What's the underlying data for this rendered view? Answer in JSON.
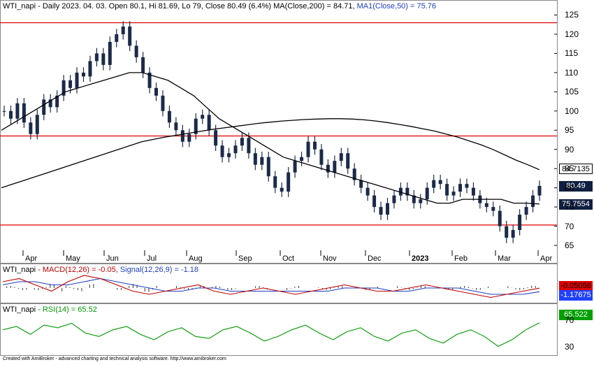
{
  "header": {
    "main": {
      "ticker": "WTI_napi",
      "info": " - Daily 2023. 04. 03. Open 80.1, Hi 81.69, Lo 79, Close 80.49 (6.4%) MA(Close,200) = 84.71, ",
      "ma50": "MA1(Close,50) = 75.76"
    },
    "macd": {
      "ticker": "WTI_napi",
      "macd_label": " - MACD(12,26) = -0.05, ",
      "signal_label": "Signal(12,26,9) = -1.18"
    },
    "rsi": {
      "ticker": "WTI_napi",
      "rsi_label": " - RSI(14) = 65.52"
    }
  },
  "tags": {
    "ma200": "84.7135",
    "close": "80.49",
    "ma50": "75.7554",
    "macd": "-0.05056",
    "signal": "-1.17675",
    "rsi": "65.522"
  },
  "credit": "Created with AmiBroker - advanced charting and technical analysis software. http://www.amibroker.com",
  "colors": {
    "price": "#1c2a4a",
    "ma": "#000000",
    "hline": "#e00000",
    "macd": "#c00000",
    "signal": "#1f3fbf",
    "rsi": "#009900",
    "tag_dark": "#0f1f3f",
    "tag_macd": "#e00000",
    "tag_signal": "#2040ff",
    "tag_rsi": "#00a000"
  },
  "chart_data": [
    {
      "type": "line",
      "title": "WTI_napi - Daily",
      "x_labels": [
        "Apr",
        "May",
        "Jun",
        "Jul",
        "Aug",
        "Sep",
        "Oct",
        "Nov",
        "Dec",
        "2023",
        "Feb",
        "Mar",
        "Apr"
      ],
      "y_ticks": [
        65,
        70,
        75,
        80,
        85,
        90,
        95,
        100,
        105,
        110,
        115,
        120,
        125
      ],
      "ylim": [
        63,
        126
      ],
      "horizontal_lines": [
        123,
        93.5,
        70.3
      ],
      "series": [
        {
          "name": "Close",
          "values": [
            100,
            98,
            102,
            97,
            94,
            99,
            103,
            101,
            104,
            108,
            106,
            110,
            109,
            113,
            115,
            112,
            118,
            120,
            122,
            117,
            114,
            110,
            106,
            104,
            100,
            97,
            95,
            92,
            94,
            98,
            99,
            95,
            91,
            88,
            89,
            91,
            93,
            89,
            86,
            88,
            83,
            80,
            79,
            84,
            87,
            88,
            92,
            90,
            86,
            84,
            87,
            89,
            85,
            82,
            80,
            78,
            75,
            73,
            76,
            78,
            80,
            78,
            76,
            77,
            80,
            82,
            81,
            78,
            79,
            81,
            80,
            78,
            76,
            75,
            74,
            70,
            67,
            69,
            73,
            75,
            78,
            80.49
          ]
        },
        {
          "name": "MA(Close,200)",
          "values": [
            80,
            81,
            82,
            83,
            84,
            85,
            86,
            87,
            88,
            89,
            90,
            91,
            92,
            92.6,
            93.2,
            93.7,
            94.2,
            94.7,
            95.2,
            95.6,
            96,
            96.4,
            96.8,
            97.1,
            97.4,
            97.6,
            97.8,
            97.9,
            98,
            98,
            97.9,
            97.7,
            97.4,
            97,
            96.5,
            96,
            95.4,
            94.8,
            94,
            93.2,
            92.2,
            91.2,
            90,
            88.6,
            87.2,
            86,
            84.71
          ]
        },
        {
          "name": "MA1(Close,50)",
          "values": [
            95,
            97,
            99,
            101,
            103,
            105,
            106,
            107,
            108,
            109,
            110,
            110,
            109,
            108,
            106,
            104,
            101,
            98,
            96,
            94,
            92,
            90,
            88,
            87,
            86,
            85,
            84,
            83,
            82,
            81,
            80,
            79,
            78,
            77,
            76,
            76,
            77,
            77,
            77,
            77,
            76,
            76,
            75.76
          ]
        }
      ]
    },
    {
      "type": "line",
      "title": "WTI_napi - MACD(12,26)",
      "series": [
        {
          "name": "MACD(12,26)",
          "values": [
            2,
            3,
            1,
            -1,
            2,
            4,
            3,
            1,
            -1,
            -2,
            -1,
            0,
            1,
            -1,
            -2,
            -1,
            0,
            -1,
            -2,
            -1,
            0,
            1,
            0,
            -1,
            -1,
            0,
            1,
            0,
            -1,
            -2,
            -3,
            -2,
            -1,
            -0.05
          ]
        },
        {
          "name": "Signal(12,26,9)",
          "values": [
            1,
            2,
            2,
            1,
            1,
            2,
            3,
            2,
            1,
            0,
            -1,
            -1,
            0,
            0,
            -1,
            -1,
            -1,
            -1,
            -1,
            -1,
            -1,
            0,
            0,
            0,
            -1,
            -1,
            0,
            0,
            0,
            -1,
            -2,
            -2,
            -2,
            -1.18
          ]
        }
      ]
    },
    {
      "type": "line",
      "title": "WTI_napi - RSI(14)",
      "y_ticks": [
        30,
        70
      ],
      "series": [
        {
          "name": "RSI(14)",
          "values": [
            55,
            60,
            48,
            62,
            58,
            65,
            50,
            45,
            55,
            60,
            48,
            40,
            52,
            58,
            45,
            42,
            55,
            60,
            50,
            38,
            45,
            55,
            62,
            50,
            40,
            52,
            58,
            45,
            38,
            50,
            55,
            42,
            35,
            48,
            55,
            45,
            30,
            40,
            55,
            65.52
          ]
        }
      ]
    }
  ]
}
